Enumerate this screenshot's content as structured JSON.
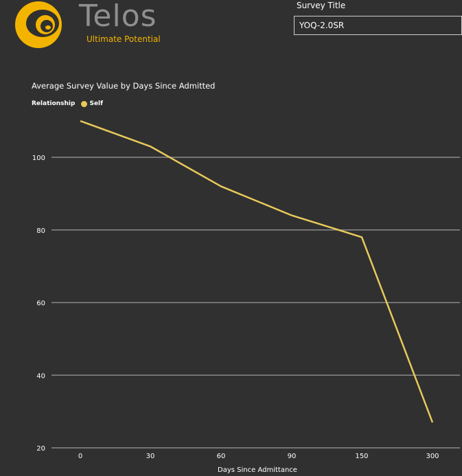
{
  "brand": {
    "name": "Telos",
    "tagline": "Ultimate Potential",
    "icon": "telos-eye-logo",
    "colors": {
      "primary": "#f3b400",
      "wordmark": "#8f8f8f"
    }
  },
  "slicer": {
    "title": "Survey Title",
    "value": "YOQ-2.0SR"
  },
  "chart_data": {
    "type": "line",
    "title": "Average Survey Value by Days Since Admitted",
    "xlabel": "Days Since Admittance",
    "ylabel": "",
    "legend_title": "Relationship",
    "legend_position": "top-left",
    "categories": [
      "0",
      "30",
      "60",
      "90",
      "150",
      "300"
    ],
    "series": [
      {
        "name": "Self",
        "color": "#e8c95a",
        "values": [
          110,
          103,
          92,
          84,
          78,
          27
        ]
      }
    ],
    "y_ticks": [
      20,
      40,
      60,
      80,
      100
    ],
    "ylim": [
      20,
      110
    ],
    "grid": true,
    "background": "#303030",
    "gridline_color": "#8a8a8a"
  }
}
